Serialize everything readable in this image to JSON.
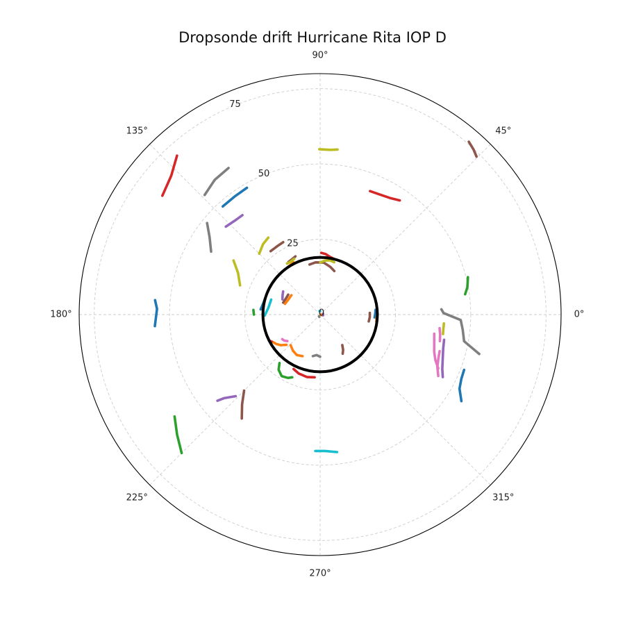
{
  "chart_data": {
    "type": "polar-line",
    "title": "Dropsonde drift Hurricane Rita IOP D",
    "theta_ticks": [
      0,
      45,
      90,
      135,
      180,
      225,
      270,
      315
    ],
    "theta_tick_labels": [
      "0°",
      "45°",
      "90°",
      "135°",
      "180°",
      "225°",
      "270°",
      "315°"
    ],
    "r_ticks": [
      0,
      25,
      50,
      75
    ],
    "r_tick_labels": [
      "0",
      "25",
      "50",
      "75"
    ],
    "rlim": [
      0,
      80
    ],
    "grid": true,
    "colors": [
      "#1f77b4",
      "#ff7f0e",
      "#2ca02c",
      "#d62728",
      "#9467bd",
      "#8c564b",
      "#e377c2",
      "#7f7f7f",
      "#bcbd22",
      "#17becf"
    ],
    "reference_circle": {
      "r": 19,
      "color": "#000000"
    },
    "tracks": [
      {
        "color": "#8c564b",
        "points": [
          [
            49.3,
            75.7
          ],
          [
            47.1,
            74.8
          ],
          [
            45.3,
            73.8
          ]
        ]
      },
      {
        "color": "#d62728",
        "points": [
          [
            68.0,
            44.2
          ],
          [
            63.6,
            44.5
          ],
          [
            59.1,
            45.1
          ],
          [
            55.1,
            46.2
          ]
        ]
      },
      {
        "color": "#bcbd22",
        "points": [
          [
            90.3,
            54.9
          ],
          [
            86.4,
            54.8
          ],
          [
            84.0,
            55.1
          ]
        ]
      },
      {
        "color": "#2ca02c",
        "points": [
          [
            14.2,
            50.6
          ],
          [
            10.5,
            49.7
          ],
          [
            8.0,
            48.6
          ]
        ]
      },
      {
        "color": "#7f7f7f",
        "points": [
          [
            -13.9,
            54.4
          ],
          [
            -10.5,
            48.6
          ],
          [
            -6.0,
            47.6
          ],
          [
            -2.2,
            46.7
          ],
          [
            0.7,
            41.0
          ],
          [
            2.5,
            40.3
          ]
        ]
      },
      {
        "color": "#e377c2",
        "points": [
          [
            -6.5,
            39.9
          ],
          [
            -9.5,
            40.4
          ],
          [
            -12.5,
            40.7
          ]
        ]
      },
      {
        "color": "#bcbd22",
        "points": [
          [
            -4.1,
            41.2
          ],
          [
            -6.8,
            41.2
          ],
          [
            -9.0,
            41.3
          ]
        ]
      },
      {
        "color": "#e377c2",
        "points": [
          [
            -9.5,
            38.4
          ],
          [
            -12.5,
            38.8
          ],
          [
            -15.5,
            39.3
          ],
          [
            -18.0,
            39.8
          ],
          [
            -21.5,
            41.1
          ],
          [
            -24.5,
            43.1
          ]
        ]
      },
      {
        "color": "#9467bd",
        "points": [
          [
            -11.5,
            42.0
          ],
          [
            -15.5,
            42.4
          ],
          [
            -20.0,
            43.3
          ],
          [
            -24.0,
            44.4
          ],
          [
            -27.0,
            45.7
          ]
        ]
      },
      {
        "color": "#1f77b4",
        "points": [
          [
            -21.0,
            51.2
          ],
          [
            -24.5,
            51.5
          ],
          [
            -28.0,
            52.4
          ],
          [
            -31.5,
            55.0
          ]
        ]
      },
      {
        "color": "#e377c2",
        "points": [
          [
            -17.0,
            41.5
          ],
          [
            -20.5,
            41.9
          ],
          [
            -24.0,
            42.6
          ],
          [
            -27.5,
            44.2
          ]
        ]
      },
      {
        "color": "#bcbd22",
        "points": [
          [
            124.0,
            30.8
          ],
          [
            129.0,
            30.1
          ],
          [
            135.0,
            28.6
          ]
        ]
      },
      {
        "color": "#8c564b",
        "points": [
          [
            117.0,
            27.0
          ],
          [
            122.0,
            26.8
          ],
          [
            128.0,
            26.7
          ]
        ]
      },
      {
        "color": "#d62728",
        "points": [
          [
            132.0,
            71.0
          ],
          [
            137.0,
            67.6
          ],
          [
            143.0,
            65.6
          ]
        ]
      },
      {
        "color": "#7f7f7f",
        "points": [
          [
            122.0,
            57.4
          ],
          [
            128.0,
            56.8
          ],
          [
            134.0,
            55.2
          ]
        ]
      },
      {
        "color": "#1f77b4",
        "points": [
          [
            120.0,
            48.6
          ],
          [
            126.0,
            48.4
          ],
          [
            132.0,
            48.3
          ]
        ]
      },
      {
        "color": "#9467bd",
        "points": [
          [
            128.0,
            41.9
          ],
          [
            132.0,
            42.1
          ],
          [
            137.0,
            42.8
          ]
        ]
      },
      {
        "color": "#7f7f7f",
        "points": [
          [
            141.0,
            48.3
          ],
          [
            145.0,
            44.8
          ],
          [
            150.0,
            41.8
          ]
        ]
      },
      {
        "color": "#bcbd22",
        "points": [
          [
            148.0,
            33.9
          ],
          [
            153.0,
            30.6
          ],
          [
            160.0,
            28.3
          ]
        ]
      },
      {
        "color": "#1f77b4",
        "points": [
          [
            175.0,
            55.0
          ],
          [
            178.0,
            54.2
          ],
          [
            184.0,
            55.0
          ]
        ]
      },
      {
        "color": "#2ca02c",
        "points": [
          [
            176.0,
            22.2
          ],
          [
            180.0,
            22.0
          ]
        ]
      },
      {
        "color": "#8c564b",
        "points": [
          [
            233.0,
            43.2
          ],
          [
            229.0,
            39.5
          ],
          [
            225.0,
            35.7
          ]
        ]
      },
      {
        "color": "#9467bd",
        "points": [
          [
            224.0,
            39.0
          ],
          [
            221.0,
            42.3
          ],
          [
            220.0,
            44.5
          ]
        ]
      },
      {
        "color": "#2ca02c",
        "points": [
          [
            215.0,
            59.0
          ],
          [
            220.0,
            62.0
          ],
          [
            225.0,
            65.0
          ]
        ]
      },
      {
        "color": "#17becf",
        "points": [
          [
            277.0,
            46.0
          ],
          [
            272.0,
            45.3
          ],
          [
            268.0,
            45.3
          ]
        ]
      },
      {
        "color": "#d62728",
        "points": [
          [
            210.0,
            18.2
          ],
          [
            207.0,
            19.0
          ],
          [
            203.0,
            19.0
          ]
        ]
      },
      {
        "color": "#2ca02c",
        "points": [
          [
            246.0,
            22.8
          ],
          [
            243.0,
            23.6
          ],
          [
            238.0,
            24.1
          ],
          [
            233.0,
            22.9
          ],
          [
            230.0,
            21.0
          ]
        ]
      },
      {
        "color": "#d62728",
        "points": [
          [
            265.0,
            20.9
          ],
          [
            258.0,
            21.2
          ],
          [
            250.0,
            20.8
          ],
          [
            244.0,
            20.1
          ]
        ]
      },
      {
        "color": "#ff7f0e",
        "points": [
          [
            247.0,
            15.0
          ],
          [
            240.0,
            15.5
          ],
          [
            233.0,
            15.0
          ],
          [
            226.0,
            14.1
          ]
        ]
      },
      {
        "color": "#ff7f0e",
        "points": [
          [
            211.0,
            18.0
          ],
          [
            214.0,
            17.5
          ],
          [
            218.0,
            16.5
          ],
          [
            222.0,
            15.0
          ]
        ]
      },
      {
        "color": "#e377c2",
        "points": [
          [
            213.0,
            15.0
          ],
          [
            216.0,
            14.7
          ],
          [
            219.0,
            14.0
          ]
        ]
      },
      {
        "color": "#7f7f7f",
        "points": [
          [
            260.0,
            14.0
          ],
          [
            265.0,
            13.5
          ],
          [
            270.0,
            14.0
          ]
        ]
      },
      {
        "color": "#8c564b",
        "points": [
          [
            300.0,
            15.0
          ],
          [
            303.0,
            14.0
          ],
          [
            306.0,
            12.5
          ]
        ]
      },
      {
        "color": "#d62728",
        "points": [
          [
            89.0,
            20.5
          ],
          [
            85.0,
            20.2
          ],
          [
            80.0,
            19.4
          ],
          [
            75.0,
            19.0
          ]
        ]
      },
      {
        "color": "#8c564b",
        "points": [
          [
            102.0,
            17.0
          ],
          [
            95.0,
            17.4
          ],
          [
            86.0,
            17.3
          ],
          [
            78.0,
            16.2
          ],
          [
            72.0,
            15.2
          ]
        ]
      },
      {
        "color": "#bcbd22",
        "points": [
          [
            90.0,
            17.3
          ],
          [
            85.0,
            18.0
          ],
          [
            80.0,
            18.3
          ],
          [
            75.0,
            18.0
          ]
        ]
      },
      {
        "color": "#8c564b",
        "points": [
          [
            113.0,
            21.0
          ],
          [
            117.0,
            20.6
          ],
          [
            121.0,
            20.4
          ]
        ]
      },
      {
        "color": "#ff7f0e",
        "points": [
          [
            117.0,
            19.5
          ],
          [
            121.0,
            19.2
          ],
          [
            125.0,
            19.0
          ]
        ]
      },
      {
        "color": "#bcbd22",
        "points": [
          [
            115.0,
            20.4
          ],
          [
            119.0,
            20.1
          ],
          [
            123.0,
            20.2
          ]
        ]
      },
      {
        "color": "#17becf",
        "points": [
          [
            163.0,
            17.0
          ],
          [
            172.0,
            17.3
          ],
          [
            181.0,
            18.4
          ]
        ]
      },
      {
        "color": "#1f77b4",
        "points": [
          [
            160.0,
            19.0
          ],
          [
            168.0,
            19.2
          ],
          [
            175.0,
            19.8
          ]
        ]
      },
      {
        "color": "#9467bd",
        "points": [
          [
            148.0,
            14.5
          ],
          [
            153.0,
            14.0
          ],
          [
            158.0,
            13.5
          ]
        ]
      },
      {
        "color": "#8c564b",
        "points": [
          [
            148.0,
            12.5
          ],
          [
            156.0,
            12.6
          ],
          [
            162.0,
            12.9
          ]
        ]
      },
      {
        "color": "#ff7f0e",
        "points": [
          [
            146.0,
            11.5
          ],
          [
            155.0,
            11.7
          ],
          [
            163.0,
            12.2
          ]
        ]
      },
      {
        "color": "#1f77b4",
        "points": [
          [
            5.0,
            18.5
          ],
          [
            1.0,
            18.3
          ],
          [
            -3.0,
            18.1
          ]
        ]
      },
      {
        "color": "#ff7f0e",
        "points": [
          [
            1.0,
            19.0
          ],
          [
            -3.0,
            18.8
          ],
          [
            -7.0,
            18.8
          ]
        ]
      },
      {
        "color": "#8c564b",
        "points": [
          [
            2.0,
            16.5
          ],
          [
            -3.0,
            16.5
          ],
          [
            -8.0,
            16.3
          ]
        ]
      },
      {
        "color": "#17becf",
        "points": [
          [
            90.0,
            1.2
          ],
          [
            100.0,
            1.2
          ]
        ]
      },
      {
        "color": "#9467bd",
        "points": [
          [
            15.0,
            1.0
          ],
          [
            0.0,
            1.0
          ],
          [
            -15.0,
            1.0
          ]
        ]
      },
      {
        "color": "#ff7f0e",
        "points": [
          [
            -10.0,
            0.2
          ],
          [
            -20.0,
            0.4
          ]
        ]
      },
      {
        "color": "#7f7f7f",
        "points": [
          [
            250.0,
            0.8
          ],
          [
            235.0,
            0.7
          ]
        ]
      }
    ]
  }
}
